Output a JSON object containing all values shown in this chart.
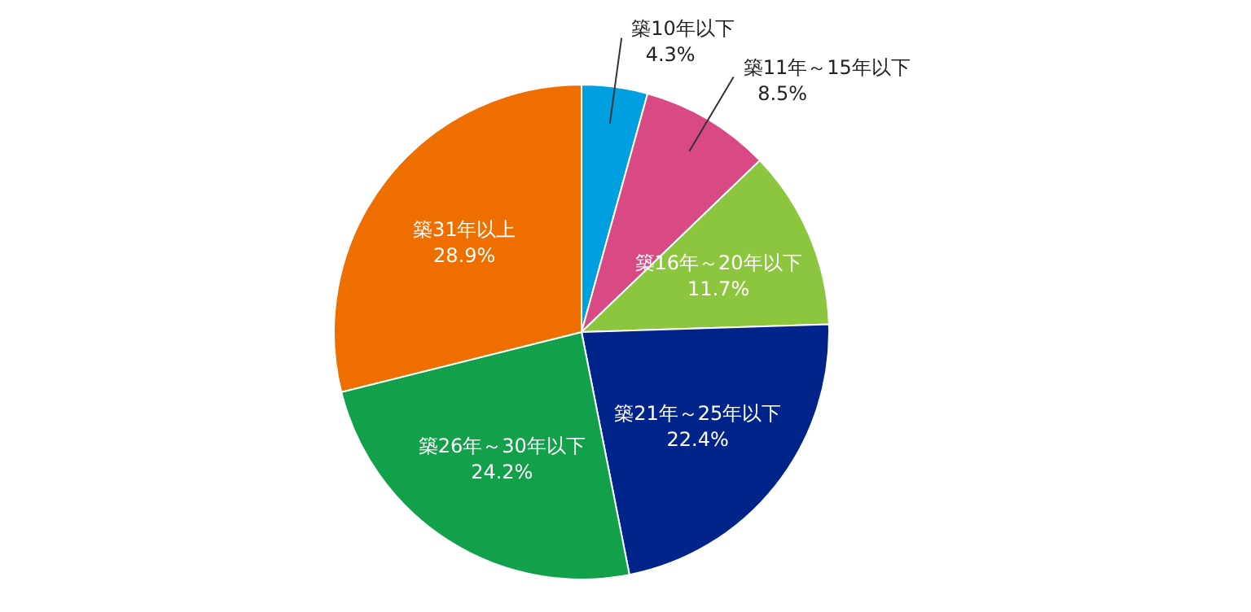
{
  "chart_data": {
    "type": "pie",
    "categories": [
      "築10年以下",
      "築11年～15年以下",
      "築16年～20年以下",
      "築21年～25年以下",
      "築26年～30年以下",
      "築31年以上"
    ],
    "values": [
      4.3,
      8.5,
      11.7,
      22.4,
      24.2,
      28.9
    ],
    "value_labels": [
      "4.3%",
      "8.5%",
      "11.7%",
      "22.4%",
      "24.2%",
      "28.9%"
    ],
    "colors": [
      "#00a0e0",
      "#d94a85",
      "#8cc63f",
      "#00248a",
      "#12a04a",
      "#ee6e00"
    ]
  }
}
